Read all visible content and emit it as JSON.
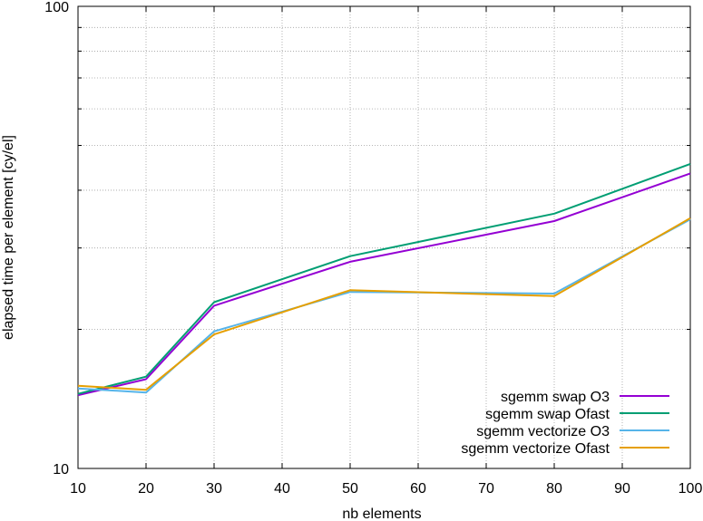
{
  "chart_data": {
    "type": "line",
    "title": "",
    "xlabel": "nb elements",
    "ylabel": "elapsed time per element [cy/el]",
    "x": [
      10,
      20,
      30,
      40,
      50,
      60,
      70,
      80,
      90,
      100
    ],
    "xlim": [
      10,
      100
    ],
    "ylim": [
      10,
      100
    ],
    "yscale": "log",
    "grid": true,
    "legend_position": "bottom-right",
    "x_ticks": [
      "10",
      "20",
      "30",
      "40",
      "50",
      "60",
      "70",
      "80",
      "90",
      "100"
    ],
    "y_ticks": [
      "10",
      "100"
    ],
    "series": [
      {
        "name": "sgemm swap O3",
        "color": "#9400d3",
        "x": [
          10,
          20,
          30,
          50,
          80,
          100
        ],
        "values": [
          14.4,
          15.6,
          22.5,
          28.0,
          34.3,
          43.5
        ]
      },
      {
        "name": "sgemm swap Ofast",
        "color": "#009e73",
        "x": [
          10,
          20,
          30,
          50,
          80,
          100
        ],
        "values": [
          14.5,
          15.8,
          22.9,
          28.8,
          35.6,
          45.6
        ]
      },
      {
        "name": "sgemm vectorize O3",
        "color": "#56b4e9",
        "x": [
          10,
          20,
          30,
          50,
          80,
          100
        ],
        "values": [
          14.9,
          14.6,
          19.8,
          24.1,
          23.9,
          34.6
        ]
      },
      {
        "name": "sgemm vectorize Ofast",
        "color": "#e69f00",
        "x": [
          10,
          20,
          30,
          50,
          80,
          100
        ],
        "values": [
          15.1,
          14.8,
          19.5,
          24.3,
          23.6,
          34.8
        ]
      }
    ]
  }
}
